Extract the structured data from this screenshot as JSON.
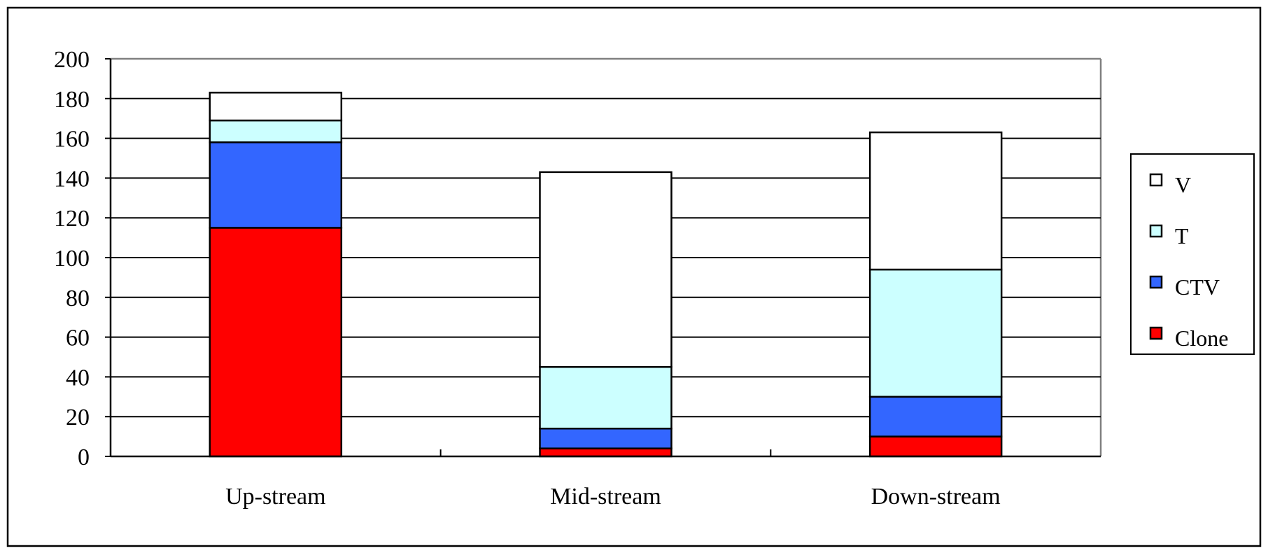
{
  "chart_data": {
    "type": "bar",
    "stacked": true,
    "categories": [
      "Up-stream",
      "Mid-stream",
      "Down-stream"
    ],
    "series": [
      {
        "name": "Clone",
        "color": "#ff0000",
        "values": [
          115,
          4,
          10
        ]
      },
      {
        "name": "CTV",
        "color": "#3366ff",
        "values": [
          43,
          10,
          20
        ]
      },
      {
        "name": "T",
        "color": "#ccffff",
        "values": [
          11,
          31,
          64
        ]
      },
      {
        "name": "V",
        "color": "#ffffff",
        "values": [
          14,
          98,
          69
        ]
      }
    ],
    "legend_order": [
      "V",
      "T",
      "CTV",
      "Clone"
    ],
    "legend_position": "right",
    "title": "",
    "xlabel": "",
    "ylabel": "",
    "ylim": [
      0,
      200
    ],
    "yticks": [
      0,
      20,
      40,
      60,
      80,
      100,
      120,
      140,
      160,
      180,
      200
    ],
    "grid": true
  }
}
